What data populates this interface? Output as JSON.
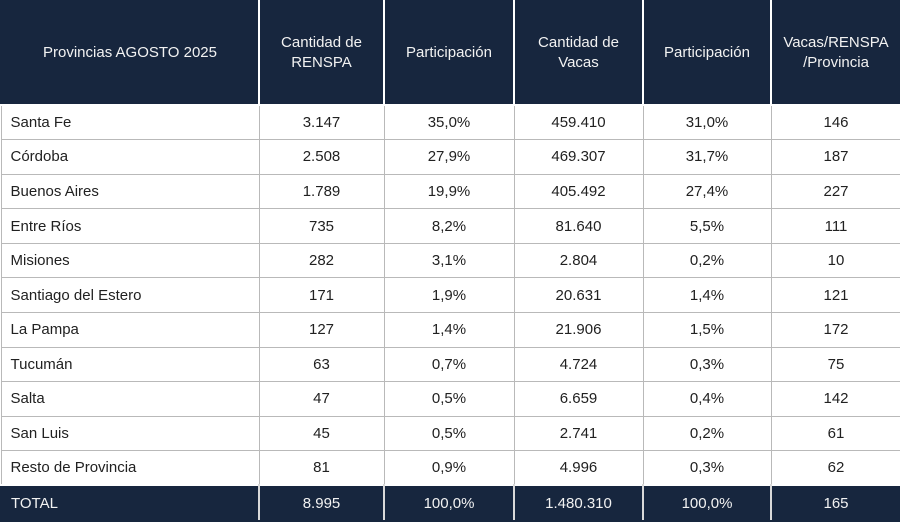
{
  "chart_data": {
    "type": "table",
    "title": "Provincias AGOSTO 2025",
    "columns": [
      "Provincias AGOSTO 2025",
      "Cantidad de RENSPA",
      "Participación",
      "Cantidad de Vacas",
      "Participación",
      "Vacas/RENSPA /Provincia"
    ],
    "rows": [
      [
        "Santa Fe",
        "3.147",
        "35,0%",
        "459.410",
        "31,0%",
        "146"
      ],
      [
        "Córdoba",
        "2.508",
        "27,9%",
        "469.307",
        "31,7%",
        "187"
      ],
      [
        "Buenos Aires",
        "1.789",
        "19,9%",
        "405.492",
        "27,4%",
        "227"
      ],
      [
        "Entre Ríos",
        "735",
        "8,2%",
        "81.640",
        "5,5%",
        "111"
      ],
      [
        "Misiones",
        "282",
        "3,1%",
        "2.804",
        "0,2%",
        "10"
      ],
      [
        "Santiago del Estero",
        "171",
        "1,9%",
        "20.631",
        "1,4%",
        "121"
      ],
      [
        "La Pampa",
        "127",
        "1,4%",
        "21.906",
        "1,5%",
        "172"
      ],
      [
        "Tucumán",
        "63",
        "0,7%",
        "4.724",
        "0,3%",
        "75"
      ],
      [
        "Salta",
        "47",
        "0,5%",
        "6.659",
        "0,4%",
        "142"
      ],
      [
        "San Luis",
        "45",
        "0,5%",
        "2.741",
        "0,2%",
        "61"
      ],
      [
        "Resto de Provincia",
        "81",
        "0,9%",
        "4.996",
        "0,3%",
        "62"
      ]
    ],
    "total": [
      "TOTAL",
      "8.995",
      "100,0%",
      "1.480.310",
      "100,0%",
      "165"
    ]
  },
  "colors": {
    "header_bg": "#17263E",
    "header_text": "#F2F2F2",
    "row_border": "#B9B9B9",
    "body_text": "#212121",
    "row_bg": "#FFFFFF"
  }
}
